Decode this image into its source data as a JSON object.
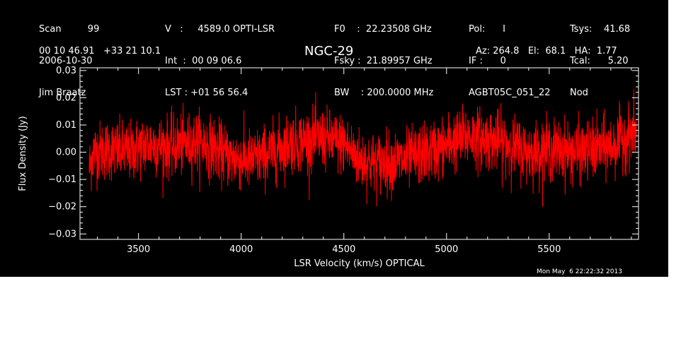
{
  "header": {
    "col1": [
      "Scan         99",
      "2006-10-30",
      "Jim Braatz"
    ],
    "col2": [
      "V   :     4589.0 OPTI-LSR",
      "Int  :  00 09 06.6",
      "LST : +01 56 56.4"
    ],
    "col3": [
      "F0    :  22.23508 GHz",
      "Fsky :  21.89957 GHz",
      "BW    : 200.0000 MHz"
    ],
    "col4": [
      "Pol:      I",
      "IF :      0",
      "AGBT05C_051_22"
    ],
    "col5": [
      "Tsys:    41.68",
      "Tcal:      5.20",
      "Nod"
    ],
    "coords": "00 10 46.91   +33 21 10.1",
    "object": "NGC-29",
    "azel": "Az: 264.8   El:  68.1   HA:  1.77",
    "timestamp": "Mon May  6 22:22:32 2013"
  },
  "colors": {
    "background": "#000000",
    "foreground": "#ffffff",
    "series": "#ff0000"
  },
  "chart_data": {
    "type": "line",
    "title": "NGC-29",
    "xlabel": "LSR Velocity (km/s) OPTICAL",
    "ylabel": "Flux Density (Jy)",
    "xlim": [
      3215,
      5935
    ],
    "ylim": [
      -0.032,
      0.031
    ],
    "xticks": [
      3500,
      4000,
      4500,
      5000,
      5500
    ],
    "xtick_labels": [
      "3500",
      "4000",
      "4500",
      "5000",
      "5500"
    ],
    "yticks": [
      -0.03,
      -0.02,
      -0.01,
      0.0,
      0.01,
      0.02,
      0.03
    ],
    "ytick_labels": [
      "−0.03",
      "−0.02",
      "−0.01",
      "0.00",
      "0.01",
      "0.02",
      "0.03"
    ],
    "grid": false,
    "series": [
      {
        "color": "#ff0000",
        "x_start": 3260,
        "x_end": 5925,
        "noise_sigma": 0.0055,
        "baseline_x": [
          3260,
          3280,
          3350,
          3450,
          3550,
          3650,
          3800,
          3950,
          4050,
          4150,
          4250,
          4400,
          4500,
          4580,
          4650,
          4800,
          4950,
          5100,
          5250,
          5400,
          5500,
          5650,
          5800,
          5925
        ],
        "baseline_y": [
          -0.006,
          0.0,
          0.001,
          0.0,
          0.003,
          0.002,
          0.004,
          -0.002,
          -0.003,
          0.0,
          0.004,
          0.005,
          0.003,
          -0.003,
          -0.004,
          -0.003,
          0.001,
          0.006,
          0.004,
          0.0,
          0.001,
          0.0,
          0.002,
          0.008
        ]
      }
    ]
  }
}
